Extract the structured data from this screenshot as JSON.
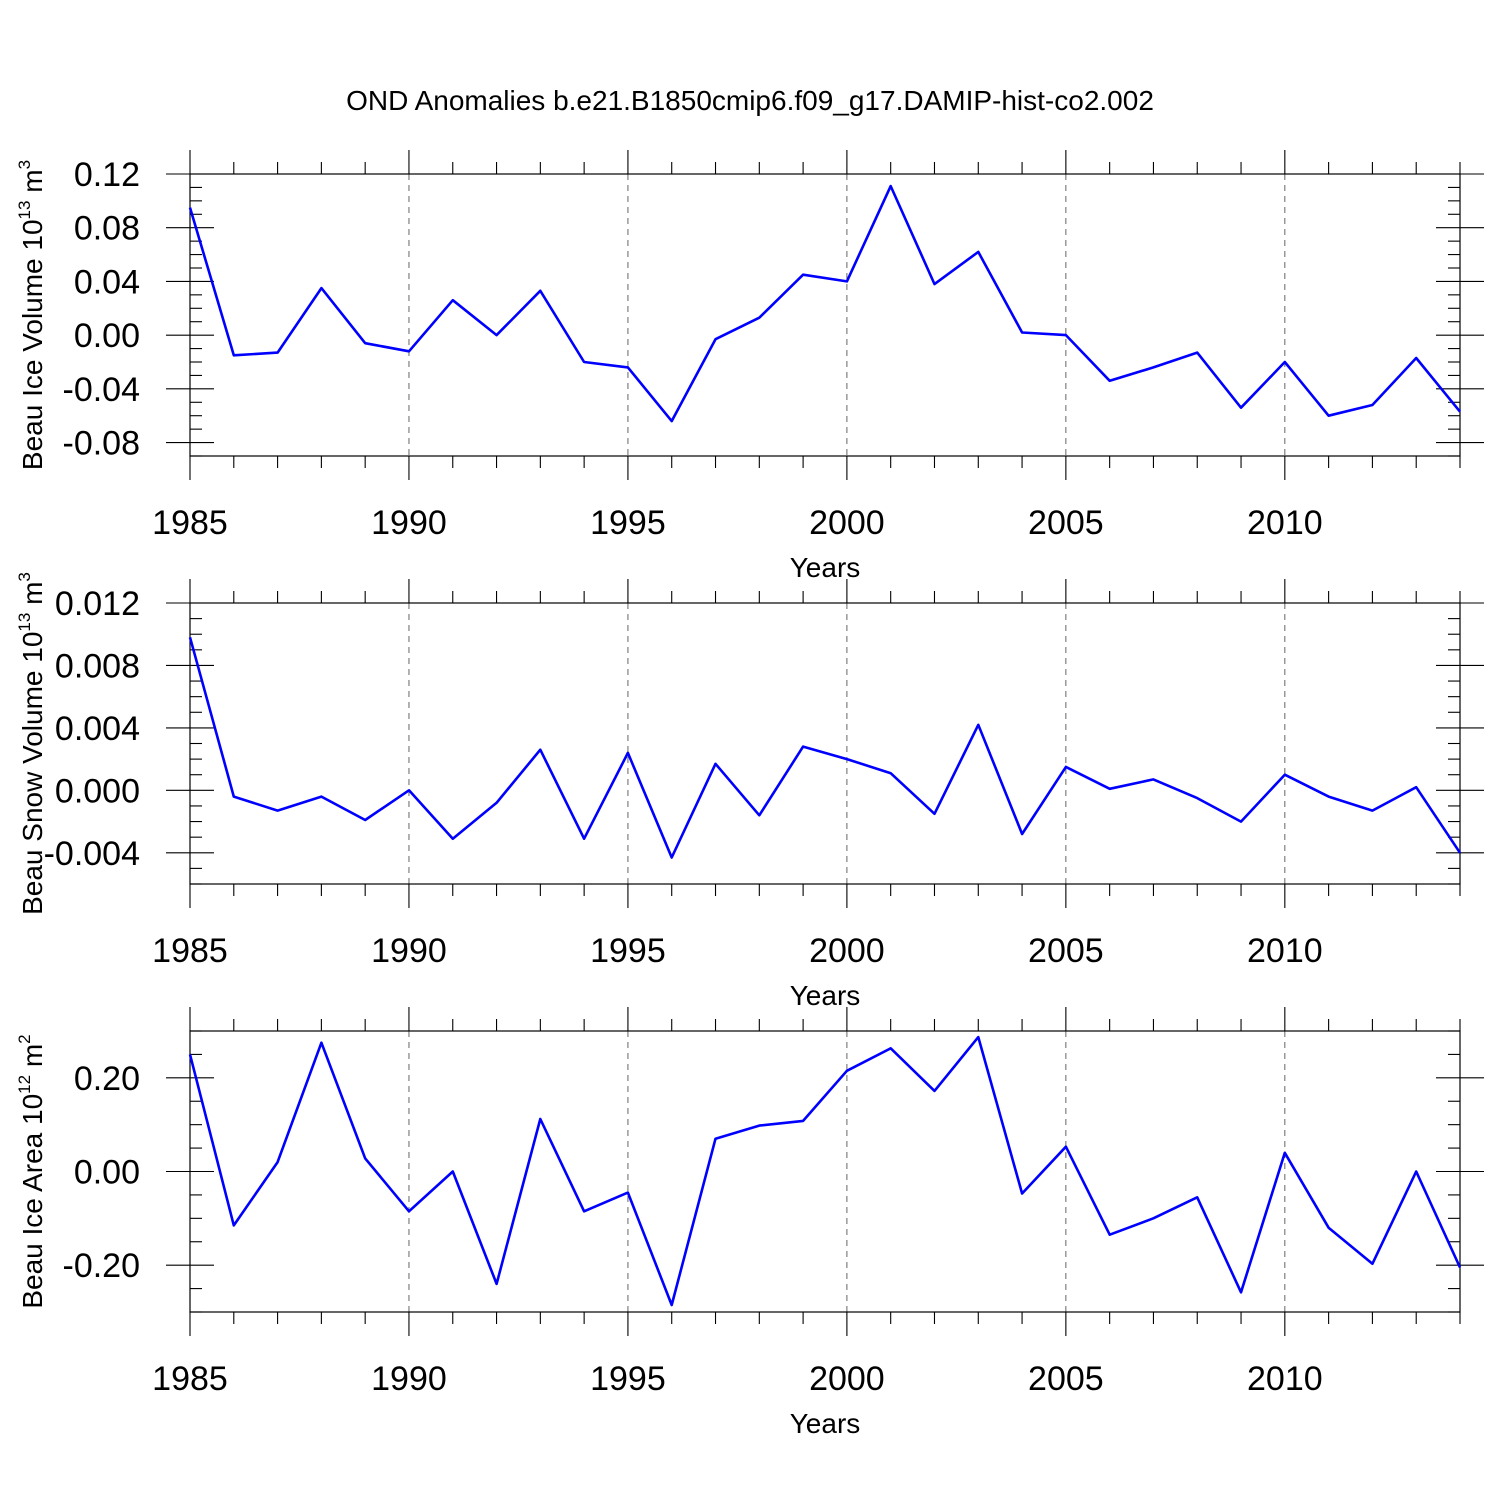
{
  "title": "OND Anomalies b.e21.B1850cmip6.f09_g17.DAMIP-hist-co2.002",
  "series_color": "#0000ff",
  "chart_data": [
    {
      "type": "line",
      "ylabel": "Beau Ice Volume 10",
      "ylabel_exp": "13",
      "ylabel_unit": " m",
      "ylabel_unit_exp": "3",
      "xlabel": "Years",
      "xlim": [
        1985,
        2014
      ],
      "ylim": [
        -0.09,
        0.12
      ],
      "yticks": [
        -0.08,
        -0.04,
        0.0,
        0.04,
        0.08,
        0.12
      ],
      "ytick_labels": [
        "-0.08",
        "-0.04",
        "0.00",
        "0.04",
        "0.08",
        "0.12"
      ],
      "yminor": 0.01,
      "xticks": [
        1985,
        1990,
        1995,
        2000,
        2005,
        2010
      ],
      "xtick_labels": [
        "1985",
        "1990",
        "1995",
        "2000",
        "2005",
        "2010"
      ],
      "grid_x": [
        1990,
        1995,
        2000,
        2005,
        2010
      ],
      "x": [
        1985,
        1986,
        1987,
        1988,
        1989,
        1990,
        1991,
        1992,
        1993,
        1994,
        1995,
        1996,
        1997,
        1998,
        1999,
        2000,
        2001,
        2002,
        2003,
        2004,
        2005,
        2006,
        2007,
        2008,
        2009,
        2010,
        2011,
        2012,
        2013,
        2014
      ],
      "values": [
        0.095,
        -0.015,
        -0.013,
        0.035,
        -0.006,
        -0.012,
        0.026,
        0.0,
        0.033,
        -0.02,
        -0.024,
        -0.064,
        -0.003,
        0.013,
        0.045,
        0.04,
        0.111,
        0.038,
        0.062,
        0.002,
        0.0,
        -0.034,
        -0.024,
        -0.013,
        -0.054,
        -0.02,
        -0.06,
        -0.052,
        -0.017,
        -0.057
      ]
    },
    {
      "type": "line",
      "ylabel": "Beau Snow Volume 10",
      "ylabel_exp": "13",
      "ylabel_unit": " m",
      "ylabel_unit_exp": "3",
      "xlabel": "Years",
      "xlim": [
        1985,
        2014
      ],
      "ylim": [
        -0.006,
        0.012
      ],
      "yticks": [
        -0.004,
        0.0,
        0.004,
        0.008,
        0.012
      ],
      "ytick_labels": [
        "-0.004",
        "0.000",
        "0.004",
        "0.008",
        "0.012"
      ],
      "yminor": 0.001,
      "xticks": [
        1985,
        1990,
        1995,
        2000,
        2005,
        2010
      ],
      "xtick_labels": [
        "1985",
        "1990",
        "1995",
        "2000",
        "2005",
        "2010"
      ],
      "grid_x": [
        1990,
        1995,
        2000,
        2005,
        2010
      ],
      "x": [
        1985,
        1986,
        1987,
        1988,
        1989,
        1990,
        1991,
        1992,
        1993,
        1994,
        1995,
        1996,
        1997,
        1998,
        1999,
        2000,
        2001,
        2002,
        2003,
        2004,
        2005,
        2006,
        2007,
        2008,
        2009,
        2010,
        2011,
        2012,
        2013,
        2014
      ],
      "values": [
        0.0098,
        -0.0004,
        -0.0013,
        -0.0004,
        -0.0019,
        0.0,
        -0.0031,
        -0.0008,
        0.0026,
        -0.0031,
        0.0024,
        -0.0043,
        0.0017,
        -0.0016,
        0.0028,
        0.002,
        0.0011,
        -0.0015,
        0.0042,
        -0.0028,
        0.0015,
        0.0001,
        0.0007,
        -0.0005,
        -0.002,
        0.001,
        -0.0004,
        -0.0013,
        0.0002,
        -0.004
      ]
    },
    {
      "type": "line",
      "ylabel": "Beau Ice Area 10",
      "ylabel_exp": "12",
      "ylabel_unit": " m",
      "ylabel_unit_exp": "2",
      "xlabel": "Years",
      "xlim": [
        1985,
        2014
      ],
      "ylim": [
        -0.3,
        0.3
      ],
      "yticks": [
        -0.2,
        0.0,
        0.2
      ],
      "ytick_labels": [
        "-0.20",
        "0.00",
        "0.20"
      ],
      "yminor": 0.05,
      "xticks": [
        1985,
        1990,
        1995,
        2000,
        2005,
        2010
      ],
      "xtick_labels": [
        "1985",
        "1990",
        "1995",
        "2000",
        "2005",
        "2010"
      ],
      "grid_x": [
        1990,
        1995,
        2000,
        2005,
        2010
      ],
      "x": [
        1985,
        1986,
        1987,
        1988,
        1989,
        1990,
        1991,
        1992,
        1993,
        1994,
        1995,
        1996,
        1997,
        1998,
        1999,
        2000,
        2001,
        2002,
        2003,
        2004,
        2005,
        2006,
        2007,
        2008,
        2009,
        2010,
        2011,
        2012,
        2013,
        2014
      ],
      "values": [
        0.25,
        -0.115,
        0.02,
        0.275,
        0.028,
        -0.085,
        0.0,
        -0.24,
        0.112,
        -0.085,
        -0.045,
        -0.285,
        0.07,
        0.098,
        0.108,
        0.215,
        0.263,
        0.172,
        0.287,
        -0.047,
        0.053,
        -0.135,
        -0.1,
        -0.055,
        -0.258,
        0.04,
        -0.12,
        -0.197,
        0.0,
        -0.205
      ]
    }
  ]
}
